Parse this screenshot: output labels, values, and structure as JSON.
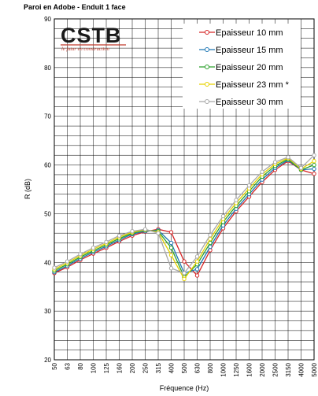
{
  "chart_data": {
    "type": "line",
    "title": "Paroi en Adobe - Enduit 1 face",
    "xlabel": "Fréquence (Hz)",
    "ylabel": "R (dB)",
    "ylim": [
      20,
      90
    ],
    "yticks": [
      20,
      30,
      40,
      50,
      60,
      70,
      80,
      90
    ],
    "grid": true,
    "legend_position": "top-right",
    "categories": [
      "50",
      "63",
      "80",
      "100",
      "125",
      "160",
      "200",
      "250",
      "315",
      "400",
      "500",
      "630",
      "800",
      "1000",
      "1250",
      "1600",
      "2000",
      "2500",
      "3150",
      "4000",
      "5000"
    ],
    "series": [
      {
        "name": "Epaisseur 10 mm",
        "color": "#d62728",
        "values": [
          37.8,
          39.0,
          40.5,
          41.8,
          43.0,
          44.3,
          45.5,
          46.3,
          46.8,
          46.2,
          40.2,
          37.3,
          42.5,
          47.0,
          50.5,
          53.5,
          56.5,
          59.0,
          60.8,
          59.0,
          58.2
        ]
      },
      {
        "name": "Epaisseur 15 mm",
        "color": "#1f77b4",
        "values": [
          38.0,
          39.3,
          40.8,
          42.1,
          43.3,
          44.6,
          45.8,
          46.4,
          46.6,
          44.0,
          37.8,
          38.6,
          43.2,
          47.6,
          51.0,
          54.0,
          57.0,
          59.4,
          61.0,
          59.0,
          59.2
        ]
      },
      {
        "name": "Epaisseur 20 mm",
        "color": "#2ca02c",
        "values": [
          38.3,
          39.6,
          41.1,
          42.4,
          43.6,
          44.9,
          46.0,
          46.6,
          46.4,
          43.0,
          37.0,
          39.6,
          44.0,
          48.3,
          51.6,
          54.6,
          57.6,
          59.8,
          61.2,
          59.0,
          60.0
        ]
      },
      {
        "name": "Epaisseur 23 mm *",
        "color": "#e6d200",
        "values": [
          38.6,
          39.9,
          41.4,
          42.7,
          43.9,
          45.2,
          46.2,
          46.7,
          46.2,
          41.5,
          36.6,
          40.2,
          44.8,
          48.9,
          52.2,
          55.2,
          58.1,
          60.2,
          61.4,
          59.2,
          60.8
        ]
      },
      {
        "name": "Epaisseur 30 mm",
        "color": "#a8a8a8",
        "values": [
          38.9,
          40.2,
          41.7,
          43.0,
          44.2,
          45.5,
          46.4,
          46.8,
          46.0,
          38.8,
          37.8,
          41.2,
          45.6,
          49.5,
          52.8,
          55.8,
          58.6,
          60.6,
          61.6,
          59.4,
          62.0
        ]
      }
    ]
  },
  "logo": {
    "text": "CSTB",
    "tagline": "le futur en construction"
  }
}
